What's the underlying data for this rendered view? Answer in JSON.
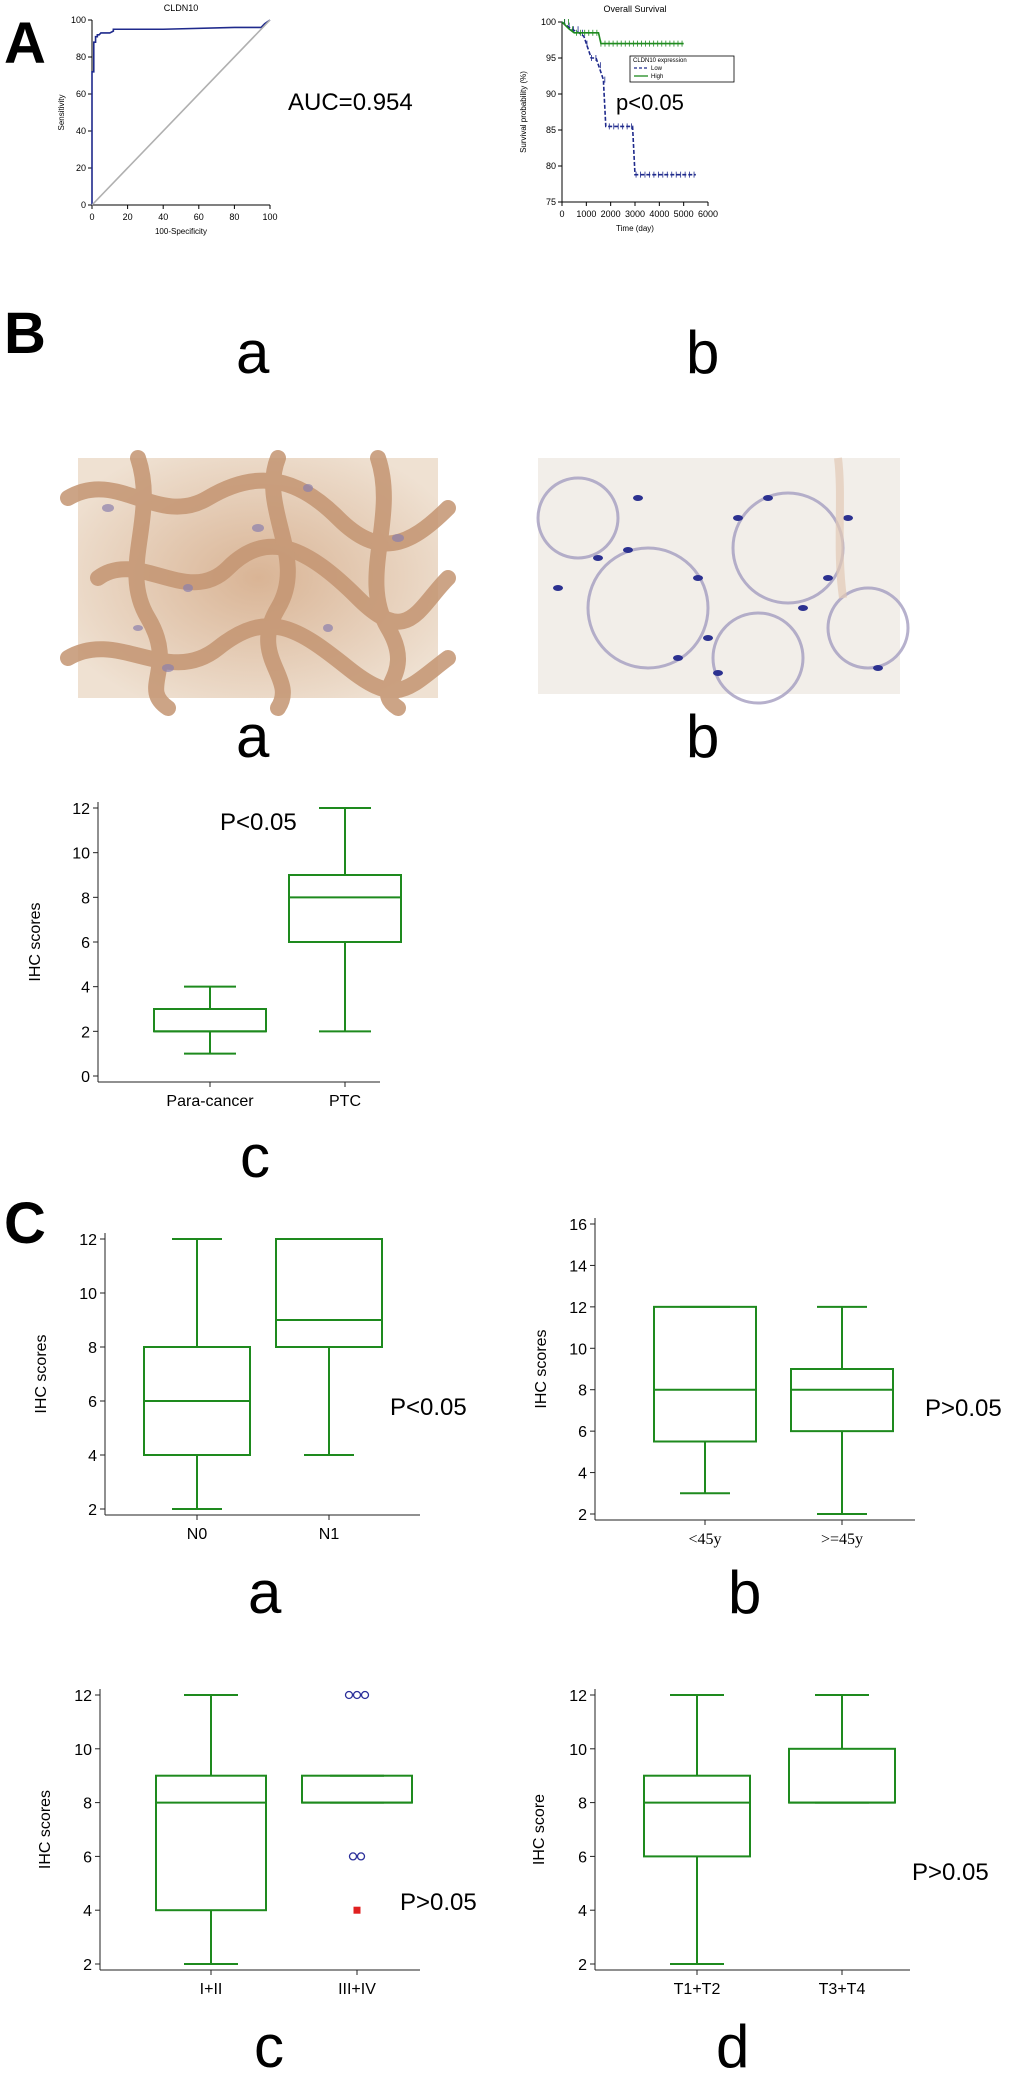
{
  "sections": {
    "A": "A",
    "B": "B",
    "C": "C"
  },
  "panel_labels": {
    "A_a": "a",
    "A_b": "b",
    "B_a": "a",
    "B_b": "b",
    "B_c": "c",
    "C_a": "a",
    "C_b": "b",
    "C_c": "c",
    "C_d": "d"
  },
  "annotations": {
    "auc": "AUC=0.954",
    "km_p": "p<0.05",
    "B_c_p": "P<0.05",
    "C_a_p": "P<0.05",
    "C_b_p": "P>0.05",
    "C_c_p": "P>0.05",
    "C_d_p": "P>0.05"
  },
  "images": {
    "B_a": {
      "description_colors": [
        "#f1e6da",
        "#c8a07c",
        "#8a7fa8"
      ]
    },
    "B_b": {
      "description_colors": [
        "#f3efeb",
        "#2b2f8c",
        "#b9b3c8"
      ]
    }
  },
  "chart_data": [
    {
      "id": "A_a",
      "type": "line",
      "title": "CLDN10",
      "xlabel": "100-Specificity",
      "ylabel": "Sensitivity",
      "xlim": [
        0,
        100
      ],
      "ylim": [
        0,
        100
      ],
      "xticks": [
        "0",
        "20",
        "40",
        "60",
        "80",
        "100"
      ],
      "yticks": [
        "0",
        "20",
        "40",
        "60",
        "80",
        "100"
      ],
      "series": [
        {
          "color": "#1f2a8c",
          "x": [
            0,
            0,
            1,
            1,
            2,
            2,
            3,
            3,
            4,
            5,
            8,
            10,
            12,
            12,
            40,
            80,
            95,
            97,
            100
          ],
          "y": [
            0,
            72,
            72,
            88,
            88,
            91,
            91,
            92,
            92,
            93,
            93,
            93,
            94,
            95,
            95,
            96,
            96,
            98,
            100
          ]
        },
        {
          "color": "#b0b0b0",
          "x": [
            0,
            100
          ],
          "y": [
            0,
            100
          ]
        }
      ]
    },
    {
      "id": "A_b",
      "type": "line",
      "title": "Overall Survival",
      "xlabel": "Time (day)",
      "ylabel": "Survival probability (%)",
      "xlim": [
        0,
        6000
      ],
      "ylim": [
        75,
        100
      ],
      "xticks": [
        "0",
        "1000",
        "2000",
        "3000",
        "4000",
        "5000",
        "6000"
      ],
      "yticks": [
        "75",
        "80",
        "85",
        "90",
        "95",
        "100"
      ],
      "legend_title": "CLDN10 expression",
      "legend_position": "top-right",
      "series": [
        {
          "name": "Low",
          "color": "#1f2a8c",
          "dashed": true,
          "x": [
            0,
            200,
            400,
            700,
            900,
            1000,
            1200,
            1400,
            1500,
            1600,
            1700,
            1800,
            2100,
            2900,
            3000,
            3100,
            5500
          ],
          "y": [
            100,
            99.5,
            99,
            98.5,
            98,
            97,
            95,
            95,
            94,
            93,
            92,
            85.5,
            85.5,
            85.5,
            78.8,
            78.8,
            78.8
          ]
        },
        {
          "name": "High",
          "color": "#1e8a1e",
          "dashed": false,
          "x": [
            0,
            300,
            500,
            800,
            1000,
            1500,
            1600,
            1700,
            5000
          ],
          "y": [
            100,
            99,
            98.5,
            98.5,
            98.5,
            98.5,
            97,
            97,
            97
          ]
        }
      ]
    },
    {
      "id": "B_c",
      "type": "box",
      "ylabel": "IHC scores",
      "ylim": [
        0,
        12
      ],
      "yticks": [
        "0",
        "2",
        "4",
        "6",
        "8",
        "10",
        "12"
      ],
      "categories": [
        "Para-cancer",
        "PTC"
      ],
      "boxes": [
        {
          "min": 1,
          "q1": 2,
          "median": 2,
          "q3": 3,
          "max": 4
        },
        {
          "min": 2,
          "q1": 6,
          "median": 8,
          "q3": 9,
          "max": 12
        }
      ]
    },
    {
      "id": "C_a",
      "type": "box",
      "ylabel": "IHC scores",
      "ylim": [
        2,
        12
      ],
      "yticks": [
        "2",
        "4",
        "6",
        "8",
        "10",
        "12"
      ],
      "categories": [
        "N0",
        "N1"
      ],
      "boxes": [
        {
          "min": 2,
          "q1": 4,
          "median": 6,
          "q3": 8,
          "max": 12
        },
        {
          "min": 4,
          "q1": 8,
          "median": 9,
          "q3": 12,
          "max": 12
        }
      ]
    },
    {
      "id": "C_b",
      "type": "box",
      "ylabel": "IHC scores",
      "ylim": [
        2,
        16
      ],
      "yticks": [
        "2",
        "4",
        "6",
        "8",
        "10",
        "12",
        "14",
        "16"
      ],
      "categories": [
        "<45y",
        ">=45y"
      ],
      "boxes": [
        {
          "min": 3,
          "q1": 5.5,
          "median": 8,
          "q3": 12,
          "max": 12
        },
        {
          "min": 2,
          "q1": 6,
          "median": 8,
          "q3": 9,
          "max": 12
        }
      ]
    },
    {
      "id": "C_c",
      "type": "box",
      "ylabel": "IHC scores",
      "ylim": [
        2,
        12
      ],
      "yticks": [
        "2",
        "4",
        "6",
        "8",
        "10",
        "12"
      ],
      "categories": [
        "I+II",
        "III+IV"
      ],
      "boxes": [
        {
          "min": 2,
          "q1": 4,
          "median": 8,
          "q3": 9,
          "max": 12
        },
        {
          "min": 8,
          "q1": 8,
          "median": 8,
          "q3": 9,
          "max": 9
        }
      ],
      "outliers": [
        {
          "category": 1,
          "value": 12,
          "count": 3,
          "style": "circle"
        },
        {
          "category": 1,
          "value": 6,
          "count": 2,
          "style": "circle"
        },
        {
          "category": 1,
          "value": 4,
          "count": 1,
          "style": "square"
        }
      ]
    },
    {
      "id": "C_d",
      "type": "box",
      "ylabel": "IHC score",
      "ylim": [
        2,
        12
      ],
      "yticks": [
        "2",
        "4",
        "6",
        "8",
        "10",
        "12"
      ],
      "categories": [
        "T1+T2",
        "T3+T4"
      ],
      "boxes": [
        {
          "min": 2,
          "q1": 6,
          "median": 8,
          "q3": 9,
          "max": 12
        },
        {
          "min": 8,
          "q1": 8,
          "median": 8,
          "q3": 10,
          "max": 12
        }
      ]
    }
  ]
}
